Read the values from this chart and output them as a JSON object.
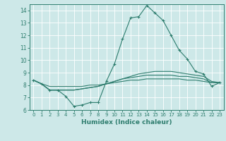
{
  "title": "",
  "xlabel": "Humidex (Indice chaleur)",
  "ylabel": "",
  "xlim": [
    -0.5,
    23.5
  ],
  "ylim": [
    6,
    14.5
  ],
  "yticks": [
    6,
    7,
    8,
    9,
    10,
    11,
    12,
    13,
    14
  ],
  "xticks": [
    0,
    1,
    2,
    3,
    4,
    5,
    6,
    7,
    8,
    9,
    10,
    11,
    12,
    13,
    14,
    15,
    16,
    17,
    18,
    19,
    20,
    21,
    22,
    23
  ],
  "bg_color": "#cde8e8",
  "grid_color": "#ffffff",
  "line_color": "#2e7d6e",
  "line1": {
    "x": [
      0,
      1,
      2,
      3,
      4,
      5,
      6,
      7,
      8,
      9,
      10,
      11,
      12,
      13,
      14,
      15,
      16,
      17,
      18,
      19,
      20,
      21,
      22,
      23
    ],
    "y": [
      8.4,
      8.1,
      7.6,
      7.6,
      7.1,
      6.3,
      6.4,
      6.6,
      6.6,
      8.3,
      9.7,
      11.7,
      13.4,
      13.5,
      14.4,
      13.8,
      13.2,
      12.0,
      10.8,
      10.1,
      9.1,
      8.9,
      7.9,
      8.2
    ]
  },
  "line2": {
    "x": [
      0,
      1,
      2,
      3,
      4,
      5,
      6,
      7,
      8,
      9,
      10,
      11,
      12,
      13,
      14,
      15,
      16,
      17,
      18,
      19,
      20,
      21,
      22,
      23
    ],
    "y": [
      8.4,
      8.1,
      7.6,
      7.6,
      7.6,
      7.6,
      7.7,
      7.8,
      7.9,
      8.1,
      8.3,
      8.5,
      8.7,
      8.9,
      9.0,
      9.1,
      9.1,
      9.1,
      9.0,
      8.9,
      8.8,
      8.7,
      8.3,
      8.2
    ]
  },
  "line3": {
    "x": [
      0,
      1,
      2,
      3,
      4,
      5,
      6,
      7,
      8,
      9,
      10,
      11,
      12,
      13,
      14,
      15,
      16,
      17,
      18,
      19,
      20,
      21,
      22,
      23
    ],
    "y": [
      8.4,
      8.1,
      7.6,
      7.6,
      7.6,
      7.6,
      7.7,
      7.8,
      7.9,
      8.1,
      8.3,
      8.5,
      8.6,
      8.7,
      8.8,
      8.8,
      8.8,
      8.8,
      8.7,
      8.7,
      8.6,
      8.5,
      8.2,
      8.2
    ]
  },
  "line4": {
    "x": [
      0,
      1,
      2,
      3,
      4,
      5,
      6,
      7,
      8,
      9,
      10,
      11,
      12,
      13,
      14,
      15,
      16,
      17,
      18,
      19,
      20,
      21,
      22,
      23
    ],
    "y": [
      8.4,
      8.1,
      7.9,
      7.9,
      7.9,
      7.9,
      7.9,
      8.0,
      8.0,
      8.1,
      8.2,
      8.3,
      8.4,
      8.4,
      8.5,
      8.5,
      8.5,
      8.5,
      8.5,
      8.4,
      8.4,
      8.3,
      8.2,
      8.2
    ]
  }
}
